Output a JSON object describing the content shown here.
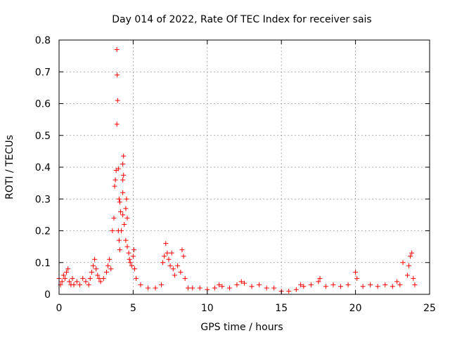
{
  "chart_data": {
    "type": "scatter",
    "title": "Day 014 of 2022, Rate Of TEC Index for receiver sais",
    "xlabel": "GPS time / hours",
    "ylabel": "ROTI / TECUs",
    "xlim": [
      0,
      25
    ],
    "ylim": [
      0,
      0.8
    ],
    "xticks": [
      0,
      5,
      10,
      15,
      20,
      25
    ],
    "xtick_labels": [
      "0",
      "5",
      "10",
      "15",
      "20",
      "25"
    ],
    "yticks": [
      0,
      0.1,
      0.2,
      0.3,
      0.4,
      0.5,
      0.6,
      0.7,
      0.8
    ],
    "ytick_labels": [
      "0",
      "0.1",
      "0.2",
      "0.3",
      "0.4",
      "0.5",
      "0.6",
      "0.7",
      "0.8"
    ],
    "grid": true,
    "marker": "+",
    "color": "#ff0000",
    "series": [
      {
        "name": "ROTI",
        "points": [
          [
            0.0,
            0.05
          ],
          [
            0.1,
            0.03
          ],
          [
            0.2,
            0.04
          ],
          [
            0.3,
            0.06
          ],
          [
            0.4,
            0.05
          ],
          [
            0.5,
            0.07
          ],
          [
            0.6,
            0.08
          ],
          [
            0.7,
            0.04
          ],
          [
            0.8,
            0.03
          ],
          [
            0.9,
            0.05
          ],
          [
            1.0,
            0.03
          ],
          [
            1.2,
            0.04
          ],
          [
            1.4,
            0.03
          ],
          [
            1.6,
            0.05
          ],
          [
            1.8,
            0.04
          ],
          [
            2.0,
            0.03
          ],
          [
            2.1,
            0.05
          ],
          [
            2.2,
            0.07
          ],
          [
            2.3,
            0.09
          ],
          [
            2.4,
            0.11
          ],
          [
            2.5,
            0.08
          ],
          [
            2.6,
            0.06
          ],
          [
            2.7,
            0.05
          ],
          [
            2.8,
            0.04
          ],
          [
            3.0,
            0.05
          ],
          [
            3.2,
            0.07
          ],
          [
            3.3,
            0.09
          ],
          [
            3.4,
            0.11
          ],
          [
            3.5,
            0.08
          ],
          [
            3.6,
            0.2
          ],
          [
            3.7,
            0.24
          ],
          [
            3.75,
            0.34
          ],
          [
            3.8,
            0.36
          ],
          [
            3.85,
            0.39
          ],
          [
            3.9,
            0.77
          ],
          [
            3.92,
            0.69
          ],
          [
            3.95,
            0.61
          ],
          [
            3.9,
            0.535
          ],
          [
            4.0,
            0.395
          ],
          [
            4.05,
            0.3
          ],
          [
            4.1,
            0.29
          ],
          [
            4.15,
            0.26
          ],
          [
            4.0,
            0.2
          ],
          [
            4.05,
            0.17
          ],
          [
            4.1,
            0.14
          ],
          [
            4.2,
            0.2
          ],
          [
            4.3,
            0.25
          ],
          [
            4.3,
            0.36
          ],
          [
            4.35,
            0.375
          ],
          [
            4.3,
            0.41
          ],
          [
            4.35,
            0.435
          ],
          [
            4.3,
            0.32
          ],
          [
            4.4,
            0.22
          ],
          [
            4.5,
            0.27
          ],
          [
            4.55,
            0.3
          ],
          [
            4.6,
            0.24
          ],
          [
            4.5,
            0.17
          ],
          [
            4.6,
            0.15
          ],
          [
            4.7,
            0.13
          ],
          [
            4.75,
            0.11
          ],
          [
            4.8,
            0.1
          ],
          [
            4.9,
            0.09
          ],
          [
            5.0,
            0.12
          ],
          [
            5.05,
            0.14
          ],
          [
            5.1,
            0.08
          ],
          [
            5.2,
            0.05
          ],
          [
            5.5,
            0.03
          ],
          [
            6.0,
            0.02
          ],
          [
            6.5,
            0.02
          ],
          [
            6.9,
            0.03
          ],
          [
            7.0,
            0.1
          ],
          [
            7.1,
            0.12
          ],
          [
            7.2,
            0.16
          ],
          [
            7.3,
            0.13
          ],
          [
            7.4,
            0.11
          ],
          [
            7.5,
            0.09
          ],
          [
            7.6,
            0.13
          ],
          [
            7.7,
            0.08
          ],
          [
            7.8,
            0.06
          ],
          [
            8.0,
            0.09
          ],
          [
            8.2,
            0.07
          ],
          [
            8.3,
            0.14
          ],
          [
            8.4,
            0.12
          ],
          [
            8.5,
            0.05
          ],
          [
            8.7,
            0.02
          ],
          [
            9.0,
            0.02
          ],
          [
            9.5,
            0.02
          ],
          [
            10.0,
            0.015
          ],
          [
            10.5,
            0.02
          ],
          [
            10.8,
            0.03
          ],
          [
            11.0,
            0.025
          ],
          [
            11.5,
            0.02
          ],
          [
            12.0,
            0.03
          ],
          [
            12.3,
            0.04
          ],
          [
            12.5,
            0.035
          ],
          [
            13.0,
            0.025
          ],
          [
            13.5,
            0.03
          ],
          [
            14.0,
            0.02
          ],
          [
            14.5,
            0.02
          ],
          [
            15.0,
            0.01
          ],
          [
            15.5,
            0.01
          ],
          [
            16.0,
            0.015
          ],
          [
            16.3,
            0.03
          ],
          [
            16.5,
            0.025
          ],
          [
            17.0,
            0.03
          ],
          [
            17.5,
            0.04
          ],
          [
            17.6,
            0.05
          ],
          [
            18.0,
            0.025
          ],
          [
            18.5,
            0.03
          ],
          [
            19.0,
            0.025
          ],
          [
            19.5,
            0.03
          ],
          [
            20.0,
            0.07
          ],
          [
            20.1,
            0.05
          ],
          [
            20.5,
            0.025
          ],
          [
            21.0,
            0.03
          ],
          [
            21.5,
            0.025
          ],
          [
            22.0,
            0.03
          ],
          [
            22.5,
            0.025
          ],
          [
            22.8,
            0.04
          ],
          [
            23.0,
            0.03
          ],
          [
            23.2,
            0.1
          ],
          [
            23.5,
            0.06
          ],
          [
            23.6,
            0.09
          ],
          [
            23.7,
            0.12
          ],
          [
            23.8,
            0.13
          ],
          [
            23.9,
            0.05
          ],
          [
            24.0,
            0.03
          ]
        ]
      }
    ]
  }
}
